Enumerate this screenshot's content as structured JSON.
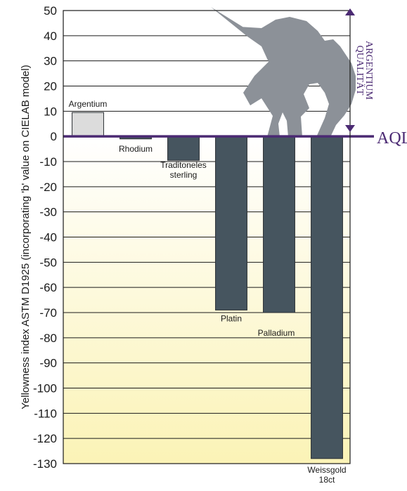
{
  "chart_data": {
    "type": "bar",
    "ylabel": "Yellowness index ASTM D1925 (incorporating 'b' value on CIELAB model)",
    "ylim": [
      -130,
      50
    ],
    "yticks": [
      50,
      40,
      30,
      20,
      10,
      0,
      -10,
      -20,
      -30,
      -40,
      -50,
      -60,
      -70,
      -80,
      -90,
      -100,
      -110,
      -120,
      -130
    ],
    "grid": true,
    "categories": [
      {
        "lines": [
          "Argentium"
        ],
        "value": 9.5,
        "color": "#dcdcdc",
        "label_side": "above"
      },
      {
        "lines": [
          "Rhodium"
        ],
        "value": -1,
        "color": "#46555f",
        "label_side": "below"
      },
      {
        "lines": [
          "Traditoneles",
          "sterling"
        ],
        "value": -9.5,
        "color": "#46555f",
        "label_side": "below"
      },
      {
        "lines": [
          "Platin"
        ],
        "value": -69,
        "color": "#46555f",
        "label_side": "below"
      },
      {
        "lines": [
          "Palladium"
        ],
        "value": -70,
        "color": "#46555f",
        "label_side": "below"
      },
      {
        "lines": [
          "Weissgold",
          "18ct"
        ],
        "value": -128,
        "color": "#46555f",
        "label_side": "below"
      }
    ],
    "reference_line": {
      "value": 0,
      "label": "AQL",
      "color": "#4b2a73"
    },
    "side_annotation": [
      "ARGENTIUM",
      "QUALITÄT"
    ],
    "colors": {
      "bar_dark": "#46555f",
      "bar_light": "#dcdcdc",
      "accent": "#4b2a73",
      "fill_bottom": "#fbf3b6"
    }
  }
}
